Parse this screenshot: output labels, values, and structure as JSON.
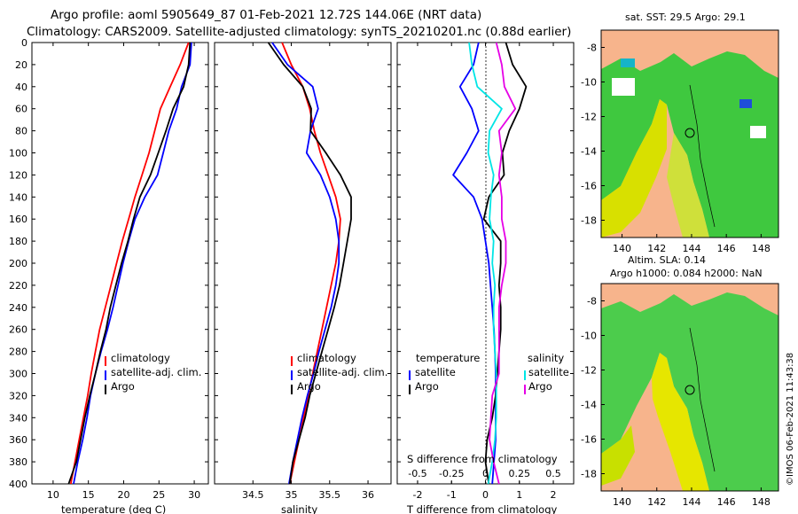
{
  "title_line1": "Argo profile: aoml 5905649_87 01-Feb-2021 12.72S 144.06E (NRT data)",
  "title_line2": "Climatology: CARS2009. Satellite-adjusted climatology: synTS_20210201.nc (0.88d earlier)",
  "depth_ticks": [
    "0",
    "20",
    "40",
    "60",
    "80",
    "100",
    "120",
    "140",
    "160",
    "180",
    "200",
    "220",
    "240",
    "260",
    "280",
    "300",
    "320",
    "340",
    "360",
    "380",
    "400"
  ],
  "colors": {
    "climatology": "#ff0000",
    "satellite": "#0000ff",
    "argo": "#000000",
    "t_diff": "#00e5e5",
    "s_diff": "#e600e6",
    "land": "#f7b48c",
    "sea_green": "#3fc83f",
    "sea_yellow": "#e6e600"
  },
  "chart_data": [
    {
      "type": "line",
      "id": "temperature",
      "xlabel": "temperature (deg C)",
      "ylabel": "depth",
      "xlim": [
        7,
        32
      ],
      "ylim": [
        400,
        0
      ],
      "xticks": [
        "10",
        "15",
        "20",
        "25",
        "30"
      ],
      "legend": [
        "climatology",
        "satellite-adj. clim.",
        "Argo"
      ],
      "series": [
        {
          "name": "climatology",
          "depth": [
            0,
            20,
            40,
            60,
            80,
            100,
            120,
            140,
            160,
            180,
            200,
            220,
            240,
            260,
            280,
            300,
            320,
            340,
            360,
            380,
            400
          ],
          "values": [
            29.2,
            28.0,
            26.6,
            25.2,
            24.4,
            23.6,
            22.6,
            21.6,
            20.7,
            19.8,
            19.0,
            18.2,
            17.4,
            16.6,
            16.0,
            15.4,
            14.9,
            14.3,
            13.7,
            13.1,
            12.5
          ]
        },
        {
          "name": "satellite-adj. clim.",
          "depth": [
            0,
            20,
            40,
            60,
            80,
            100,
            120,
            140,
            160,
            180,
            200,
            220,
            240,
            260,
            280,
            300,
            320,
            340,
            360,
            380,
            400
          ],
          "values": [
            29.6,
            29.4,
            28.2,
            27.5,
            26.4,
            25.6,
            24.8,
            23.0,
            21.6,
            20.7,
            19.9,
            19.2,
            18.5,
            17.7,
            16.8,
            16.0,
            15.3,
            14.8,
            14.2,
            13.5,
            12.9
          ]
        },
        {
          "name": "Argo",
          "depth": [
            0,
            20,
            40,
            60,
            80,
            100,
            120,
            140,
            160,
            180,
            200,
            220,
            240,
            260,
            280,
            300,
            320,
            340,
            360,
            380,
            400
          ],
          "values": [
            29.4,
            29.2,
            28.5,
            27.0,
            26.0,
            24.9,
            23.8,
            22.3,
            21.4,
            20.6,
            19.7,
            18.9,
            18.1,
            17.5,
            16.7,
            16.0,
            15.2,
            14.5,
            13.9,
            13.3,
            12.2
          ]
        }
      ]
    },
    {
      "type": "line",
      "id": "salinity",
      "xlabel": "salinity",
      "ylabel": "depth",
      "xlim": [
        34.0,
        36.3
      ],
      "ylim": [
        400,
        0
      ],
      "xticks": [
        "34.5",
        "35",
        "35.5",
        "36"
      ],
      "legend": [
        "climatology",
        "satellite-adj. clim.",
        "Argo"
      ],
      "series": [
        {
          "name": "climatology",
          "depth": [
            0,
            20,
            40,
            60,
            80,
            100,
            120,
            140,
            160,
            180,
            200,
            220,
            240,
            260,
            280,
            300,
            320,
            340,
            360,
            380,
            400
          ],
          "values": [
            34.88,
            35.0,
            35.15,
            35.24,
            35.3,
            35.38,
            35.48,
            35.58,
            35.64,
            35.62,
            35.58,
            35.52,
            35.46,
            35.4,
            35.34,
            35.28,
            35.22,
            35.16,
            35.1,
            35.04,
            34.98
          ]
        },
        {
          "name": "satellite-adj. clim.",
          "depth": [
            0,
            20,
            40,
            60,
            80,
            100,
            120,
            140,
            160,
            180,
            200,
            220,
            240,
            260,
            280,
            300,
            320,
            340,
            360,
            380,
            400
          ],
          "values": [
            34.75,
            34.95,
            35.28,
            35.35,
            35.25,
            35.2,
            35.38,
            35.5,
            35.58,
            35.62,
            35.62,
            35.58,
            35.52,
            35.44,
            35.36,
            35.29,
            35.21,
            35.14,
            35.08,
            35.02,
            34.97
          ]
        },
        {
          "name": "Argo",
          "depth": [
            0,
            20,
            40,
            60,
            80,
            100,
            120,
            140,
            160,
            180,
            200,
            220,
            240,
            260,
            280,
            300,
            320,
            340,
            360,
            380,
            400
          ],
          "values": [
            34.7,
            34.9,
            35.15,
            35.26,
            35.25,
            35.45,
            35.64,
            35.78,
            35.78,
            35.73,
            35.68,
            35.63,
            35.56,
            35.48,
            35.4,
            35.32,
            35.24,
            35.18,
            35.1,
            35.02,
            34.98
          ]
        }
      ]
    },
    {
      "type": "line",
      "id": "differences",
      "xlabel": "T difference from climatology",
      "xlabel_top": "S difference from climatology",
      "xlim": [
        -2.6,
        2.6
      ],
      "ylim": [
        400,
        0
      ],
      "xticks_bottom": [
        "-2",
        "-1",
        "0",
        "1",
        "2"
      ],
      "xticks_top": [
        "-0.5",
        "-0.25",
        "0",
        "0.25",
        "0.5"
      ],
      "s_scale": 4,
      "legend_left_title": "temperature",
      "legend_right_title": "salinity",
      "legend_left": [
        "satellite",
        "Argo"
      ],
      "legend_right": [
        "satellite",
        "Argo"
      ],
      "series": [
        {
          "name": "T satellite-adj. minus clim.",
          "depth": [
            0,
            20,
            40,
            60,
            80,
            100,
            120,
            140,
            160,
            180,
            200,
            220,
            240,
            260,
            280,
            300,
            320,
            340,
            360,
            380,
            400
          ],
          "values": [
            -0.2,
            -0.35,
            -0.75,
            -0.4,
            -0.2,
            -0.55,
            -0.95,
            -0.35,
            -0.1,
            0.0,
            0.1,
            0.15,
            0.2,
            0.25,
            0.28,
            0.3,
            0.3,
            0.3,
            0.3,
            0.25,
            0.2
          ]
        },
        {
          "name": "T Argo minus clim.",
          "depth": [
            0,
            20,
            40,
            60,
            80,
            100,
            120,
            140,
            160,
            180,
            200,
            220,
            240,
            260,
            280,
            300,
            320,
            340,
            360,
            380,
            400
          ],
          "values": [
            0.6,
            0.8,
            1.2,
            1.0,
            0.7,
            0.5,
            0.55,
            0.1,
            -0.05,
            0.45,
            0.45,
            0.4,
            0.45,
            0.45,
            0.4,
            0.35,
            0.3,
            0.2,
            0.05,
            0.0,
            0.1
          ]
        },
        {
          "name": "S satellite-adj. minus clim.",
          "depth": [
            0,
            20,
            40,
            60,
            80,
            100,
            120,
            140,
            160,
            180,
            200,
            220,
            240,
            260,
            280,
            300,
            320,
            340,
            360,
            380,
            400
          ],
          "values": [
            -0.12,
            -0.1,
            -0.06,
            0.12,
            0.03,
            0.02,
            0.06,
            0.04,
            0.03,
            0.06,
            0.05,
            0.07,
            0.06,
            0.06,
            0.07,
            0.08,
            0.08,
            0.08,
            0.07,
            0.05,
            0.02
          ]
        },
        {
          "name": "S Argo minus clim.",
          "depth": [
            0,
            20,
            40,
            60,
            80,
            100,
            120,
            140,
            160,
            180,
            200,
            220,
            240,
            260,
            280,
            300,
            320,
            340,
            360,
            380,
            400
          ],
          "values": [
            0.08,
            0.12,
            0.14,
            0.22,
            0.1,
            0.12,
            0.1,
            0.12,
            0.12,
            0.15,
            0.15,
            0.12,
            0.1,
            0.1,
            0.1,
            0.1,
            0.05,
            0.04,
            0.03,
            0.06,
            0.1
          ]
        }
      ]
    }
  ],
  "maps": {
    "sst": {
      "title": "sat. SST: 29.5 Argo: 29.1"
    },
    "sla": {
      "title_line1": "Altim. SLA: 0.14",
      "title_line2": "Argo h1000: 0.084 h2000: NaN"
    },
    "lat_ticks": [
      "-8",
      "-10",
      "-12",
      "-14",
      "-16",
      "-18"
    ],
    "lon_ticks": [
      "140",
      "142",
      "144",
      "146",
      "148"
    ],
    "marker": {
      "lon": 144.06,
      "lat": -12.72
    }
  },
  "credit": "©IMOS 06-Feb-2021 11:43:38"
}
